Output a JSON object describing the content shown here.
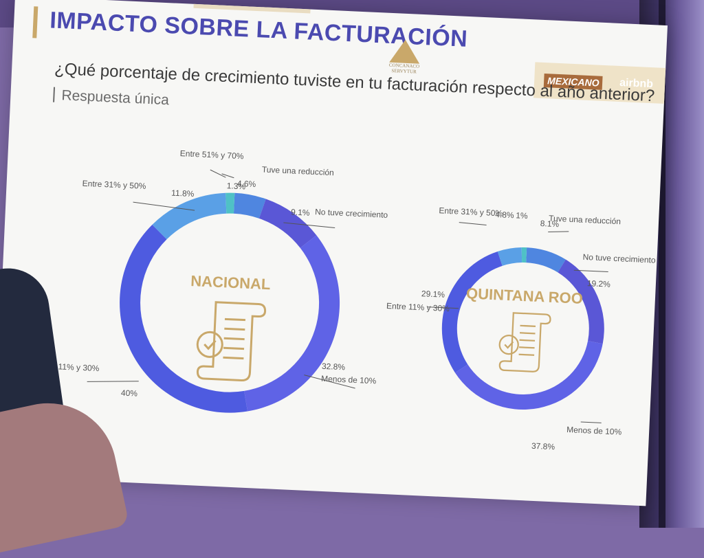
{
  "slide": {
    "title": "IMPACTO SOBRE LA FACTURACIÓN",
    "question": "¿Qué porcentaje de crecimiento tuviste en tu facturación respecto al año anterior?",
    "subtitle": "Respuesta única",
    "logo_text": "CONCANACO SERVYTUR",
    "brand_mx": "MEXICANO",
    "brand_air": "airbnb"
  },
  "colors": {
    "title": "#4b4ab0",
    "gold": "#c9a86a",
    "ring_main": "#5a57d6",
    "ring_big": "#5f63e6",
    "ring_light": "#5aa0e6",
    "ring_teal": "#4fc1c6",
    "ring_mid": "#4f86e0",
    "ring_deep": "#4e5be0"
  },
  "chart_data": [
    {
      "type": "pie",
      "variant": "donut",
      "center_label": "NACIONAL",
      "slices": [
        {
          "label": "Tuve una reducción",
          "value": 4.6,
          "value_label": "4.6%"
        },
        {
          "label": "No tuve crecimiento",
          "value": 9.1,
          "value_label": "9.1%"
        },
        {
          "label": "Menos de 10%",
          "value": 32.8,
          "value_label": "32.8%"
        },
        {
          "label": "Entre 11% y 30%",
          "value": 40,
          "value_label": "40%"
        },
        {
          "label": "Entre 31% y 50%",
          "value": 11.8,
          "value_label": "11.8%"
        },
        {
          "label": "Entre 51% y 70%",
          "value": 1.3,
          "value_label": "1.3%"
        }
      ]
    },
    {
      "type": "pie",
      "variant": "donut",
      "center_label": "QUINTANA ROO",
      "slices": [
        {
          "label": "Tuve una reducción",
          "value": 8.1,
          "value_label": "8.1%"
        },
        {
          "label": "No tuve crecimiento",
          "value": 19.2,
          "value_label": "19.2%"
        },
        {
          "label": "Menos de 10%",
          "value": 37.8,
          "value_label": "37.8%"
        },
        {
          "label": "Entre 11% y 30%",
          "value": 29.1,
          "value_label": "29.1%"
        },
        {
          "label": "Entre 31% y 50%",
          "value": 4.8,
          "value_label": "4.8%"
        },
        {
          "label": "",
          "value": 1,
          "value_label": "1%"
        }
      ]
    }
  ]
}
